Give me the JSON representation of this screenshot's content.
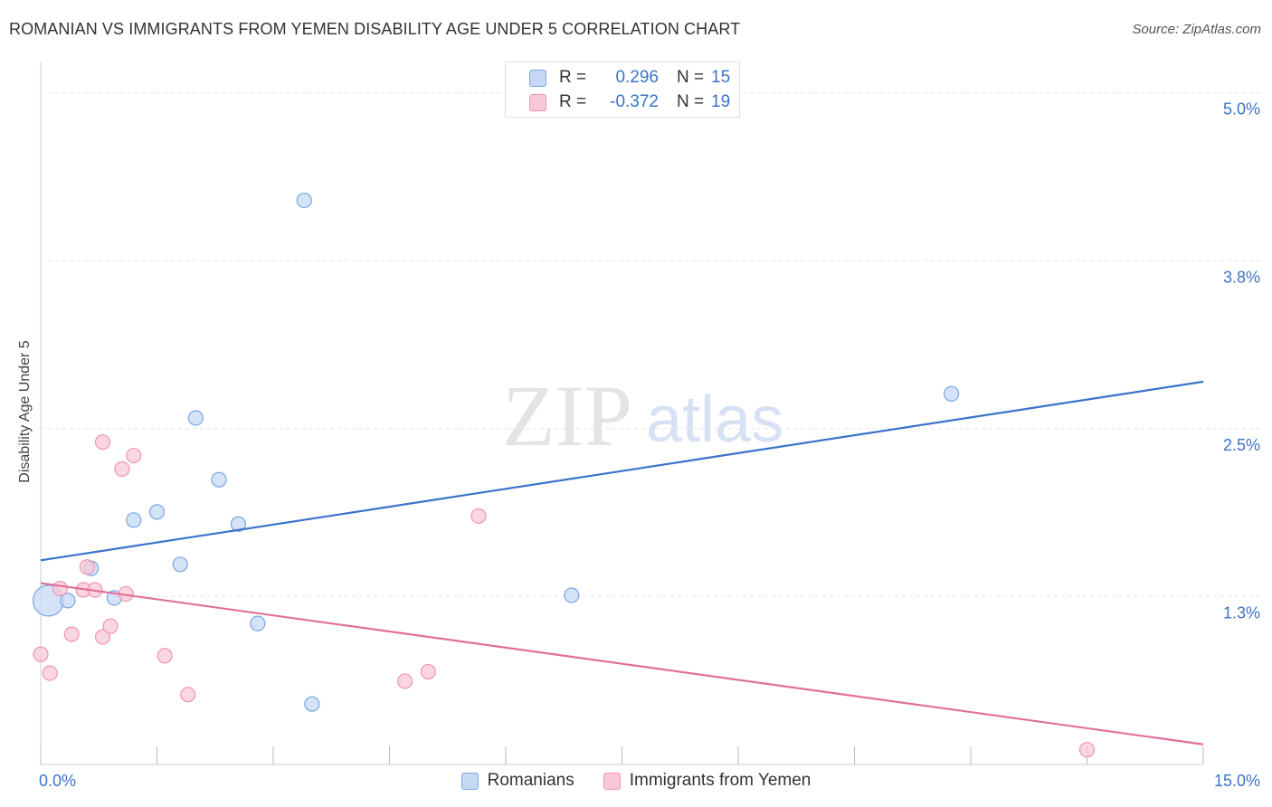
{
  "title": "ROMANIAN VS IMMIGRANTS FROM YEMEN DISABILITY AGE UNDER 5 CORRELATION CHART",
  "source": "Source: ZipAtlas.com",
  "watermark": {
    "zip": "ZIP",
    "atlas": "atlas"
  },
  "legend": {
    "rows": [
      {
        "r_label": "R =",
        "r_value": "0.296",
        "n_label": "N =",
        "n_value": "15"
      },
      {
        "r_label": "R =",
        "r_value": "-0.372",
        "n_label": "N =",
        "n_value": "19"
      }
    ]
  },
  "colors": {
    "romanians_fill": "#c5d9f4",
    "romanians_stroke": "#7aa6e0",
    "romanians_line": "#3a74c9",
    "yemen_fill": "#f8c8d6",
    "yemen_stroke": "#ee96b2",
    "yemen_line": "#e0709a",
    "tick_label": "#3a74c9",
    "grid": "#e2e2e2"
  },
  "chart_data": {
    "type": "scatter",
    "title": "ROMANIAN VS IMMIGRANTS FROM YEMEN DISABILITY AGE UNDER 5 CORRELATION CHART",
    "xlabel": "",
    "ylabel": "Disability Age Under 5",
    "xlim": [
      0,
      15
    ],
    "ylim": [
      0,
      5.2
    ],
    "x_tick_labels": [
      {
        "value": 0,
        "label": "0.0%"
      },
      {
        "value": 15,
        "label": "15.0%"
      }
    ],
    "y_tick_labels": [
      {
        "value": 5.0,
        "label": "5.0%"
      },
      {
        "value": 3.75,
        "label": "3.8%"
      },
      {
        "value": 2.5,
        "label": "2.5%"
      },
      {
        "value": 1.25,
        "label": "1.3%"
      }
    ],
    "x_minor_ticks": [
      0,
      1.5,
      3,
      4.5,
      6,
      7.5,
      9,
      10.5,
      12,
      13.5,
      15
    ],
    "series": [
      {
        "name": "Romanians",
        "points": [
          {
            "x": 0.1,
            "y": 1.22,
            "big": true
          },
          {
            "x": 0.35,
            "y": 1.22
          },
          {
            "x": 0.65,
            "y": 1.46
          },
          {
            "x": 0.95,
            "y": 1.24
          },
          {
            "x": 1.2,
            "y": 1.82
          },
          {
            "x": 1.5,
            "y": 1.88
          },
          {
            "x": 1.8,
            "y": 1.49
          },
          {
            "x": 2.0,
            "y": 2.58
          },
          {
            "x": 2.3,
            "y": 2.12
          },
          {
            "x": 2.55,
            "y": 1.79
          },
          {
            "x": 2.8,
            "y": 1.05
          },
          {
            "x": 3.4,
            "y": 4.2
          },
          {
            "x": 3.5,
            "y": 0.45
          },
          {
            "x": 6.85,
            "y": 1.26
          },
          {
            "x": 11.75,
            "y": 2.76
          }
        ],
        "trend": {
          "x0": 0,
          "y0": 1.52,
          "x1": 15,
          "y1": 2.85
        }
      },
      {
        "name": "Immigrants from Yemen",
        "points": [
          {
            "x": 0.0,
            "y": 0.82
          },
          {
            "x": 0.12,
            "y": 0.68
          },
          {
            "x": 0.25,
            "y": 1.31
          },
          {
            "x": 0.4,
            "y": 0.97
          },
          {
            "x": 0.55,
            "y": 1.3
          },
          {
            "x": 0.6,
            "y": 1.47
          },
          {
            "x": 0.7,
            "y": 1.3
          },
          {
            "x": 0.8,
            "y": 2.4
          },
          {
            "x": 0.8,
            "y": 0.95
          },
          {
            "x": 0.9,
            "y": 1.03
          },
          {
            "x": 1.05,
            "y": 2.2
          },
          {
            "x": 1.1,
            "y": 1.27
          },
          {
            "x": 1.2,
            "y": 2.3
          },
          {
            "x": 1.6,
            "y": 0.81
          },
          {
            "x": 1.9,
            "y": 0.52
          },
          {
            "x": 4.7,
            "y": 0.62
          },
          {
            "x": 5.0,
            "y": 0.69
          },
          {
            "x": 5.65,
            "y": 1.85
          },
          {
            "x": 13.5,
            "y": 0.11
          }
        ],
        "trend": {
          "x0": 0,
          "y0": 1.35,
          "x1": 15,
          "y1": 0.15
        }
      }
    ]
  }
}
